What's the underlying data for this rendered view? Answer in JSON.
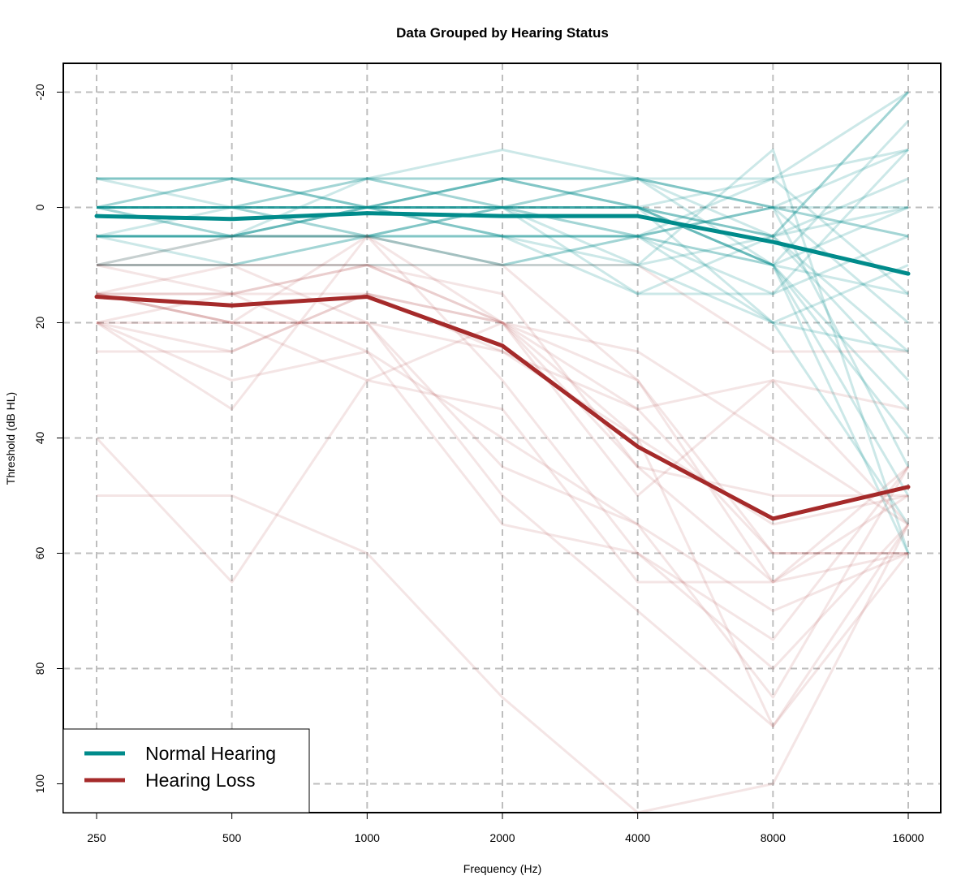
{
  "chart_data": {
    "type": "line",
    "title": "Data Grouped by Hearing Status",
    "xlabel": "Frequency (Hz)",
    "ylabel": "Threshold (dB HL)",
    "categories": [
      "250",
      "500",
      "1000",
      "2000",
      "4000",
      "8000",
      "16000"
    ],
    "ylim": [
      105,
      -25
    ],
    "y_ticks": [
      100,
      80,
      60,
      40,
      20,
      0,
      -20
    ],
    "y_axis_inverted": true,
    "grid": true,
    "legend_position": "bottom-left",
    "colors": {
      "normal_hearing": "#008b8b",
      "hearing_loss": "#a52a2a",
      "grid": "#bebebe"
    },
    "series": [
      {
        "name": "Normal Hearing",
        "group": "normal",
        "values": [
          1.5,
          2,
          1,
          1.5,
          1.5,
          6,
          11.5
        ]
      },
      {
        "name": "Hearing Loss",
        "group": "loss",
        "values": [
          15.5,
          17,
          15.5,
          24,
          41.5,
          54,
          48.5
        ]
      }
    ],
    "individual_series": [
      {
        "group": "normal",
        "values": [
          -5,
          -5,
          -5,
          -5,
          -5,
          5,
          -20
        ]
      },
      {
        "group": "normal",
        "values": [
          -5,
          -5,
          -5,
          -10,
          -5,
          -5,
          -10
        ]
      },
      {
        "group": "normal",
        "values": [
          0,
          -5,
          0,
          -5,
          -5,
          0,
          0
        ]
      },
      {
        "group": "normal",
        "values": [
          0,
          0,
          -5,
          0,
          -5,
          0,
          5
        ]
      },
      {
        "group": "normal",
        "values": [
          0,
          0,
          0,
          -5,
          0,
          5,
          25
        ]
      },
      {
        "group": "normal",
        "values": [
          0,
          0,
          0,
          0,
          0,
          10,
          40
        ]
      },
      {
        "group": "normal",
        "values": [
          0,
          5,
          0,
          0,
          0,
          10,
          60
        ]
      },
      {
        "group": "normal",
        "values": [
          5,
          0,
          0,
          0,
          0,
          5,
          30
        ]
      },
      {
        "group": "normal",
        "values": [
          5,
          5,
          5,
          5,
          5,
          10,
          15
        ]
      },
      {
        "group": "normal",
        "values": [
          5,
          5,
          0,
          5,
          5,
          10,
          35
        ]
      },
      {
        "group": "normal",
        "values": [
          0,
          -5,
          0,
          5,
          5,
          0,
          -10
        ]
      },
      {
        "group": "normal",
        "values": [
          -5,
          0,
          0,
          0,
          0,
          20,
          55
        ]
      },
      {
        "group": "normal",
        "values": [
          10,
          10,
          5,
          0,
          -5,
          10,
          0
        ]
      },
      {
        "group": "normal",
        "values": [
          10,
          5,
          -5,
          0,
          5,
          15,
          5
        ]
      },
      {
        "group": "normal",
        "values": [
          0,
          0,
          5,
          10,
          5,
          -5,
          -20
        ]
      },
      {
        "group": "normal",
        "values": [
          5,
          5,
          5,
          5,
          5,
          0,
          5
        ]
      },
      {
        "group": "normal",
        "values": [
          0,
          0,
          5,
          5,
          10,
          20,
          25
        ]
      },
      {
        "group": "normal",
        "values": [
          5,
          10,
          5,
          0,
          5,
          20,
          10
        ]
      },
      {
        "group": "normal",
        "values": [
          0,
          0,
          0,
          0,
          10,
          -10,
          60
        ]
      },
      {
        "group": "normal",
        "values": [
          10,
          10,
          10,
          10,
          10,
          5,
          0
        ]
      },
      {
        "group": "normal",
        "values": [
          5,
          5,
          0,
          5,
          15,
          5,
          -5
        ]
      },
      {
        "group": "normal",
        "values": [
          0,
          0,
          -5,
          -5,
          0,
          10,
          50
        ]
      },
      {
        "group": "normal",
        "values": [
          0,
          0,
          0,
          -5,
          -5,
          0,
          20
        ]
      },
      {
        "group": "normal",
        "values": [
          5,
          5,
          0,
          0,
          15,
          15,
          -10
        ]
      },
      {
        "group": "normal",
        "values": [
          0,
          5,
          5,
          0,
          0,
          10,
          -15
        ]
      },
      {
        "group": "normal",
        "values": [
          0,
          0,
          0,
          0,
          0,
          -5,
          15
        ]
      },
      {
        "group": "normal",
        "values": [
          -5,
          -5,
          0,
          -5,
          0,
          5,
          -20
        ]
      },
      {
        "group": "normal",
        "values": [
          5,
          5,
          5,
          10,
          5,
          0,
          45
        ]
      },
      {
        "group": "loss",
        "values": [
          10,
          10,
          10,
          10,
          10,
          25,
          25
        ]
      },
      {
        "group": "loss",
        "values": [
          15,
          20,
          20,
          25,
          35,
          60,
          60
        ]
      },
      {
        "group": "loss",
        "values": [
          20,
          25,
          15,
          20,
          30,
          65,
          45
        ]
      },
      {
        "group": "loss",
        "values": [
          15,
          15,
          10,
          15,
          45,
          65,
          60
        ]
      },
      {
        "group": "loss",
        "values": [
          25,
          25,
          15,
          20,
          50,
          30,
          55
        ]
      },
      {
        "group": "loss",
        "values": [
          20,
          30,
          25,
          40,
          55,
          70,
          60
        ]
      },
      {
        "group": "loss",
        "values": [
          20,
          35,
          5,
          20,
          40,
          90,
          55
        ]
      },
      {
        "group": "loss",
        "values": [
          15,
          20,
          30,
          35,
          65,
          65,
          50
        ]
      },
      {
        "group": "loss",
        "values": [
          10,
          5,
          5,
          30,
          60,
          75,
          45
        ]
      },
      {
        "group": "loss",
        "values": [
          20,
          20,
          20,
          50,
          70,
          90,
          60
        ]
      },
      {
        "group": "loss",
        "values": [
          50,
          50,
          60,
          85,
          105,
          100,
          55
        ]
      },
      {
        "group": "loss",
        "values": [
          40,
          65,
          30,
          20,
          25,
          40,
          55
        ]
      },
      {
        "group": "loss",
        "values": [
          15,
          15,
          15,
          25,
          40,
          55,
          50
        ]
      },
      {
        "group": "loss",
        "values": [
          15,
          10,
          20,
          45,
          55,
          85,
          45
        ]
      },
      {
        "group": "loss",
        "values": [
          10,
          15,
          10,
          20,
          35,
          30,
          35
        ]
      },
      {
        "group": "loss",
        "values": [
          15,
          20,
          5,
          10,
          30,
          60,
          60
        ]
      },
      {
        "group": "loss",
        "values": [
          20,
          15,
          25,
          55,
          60,
          80,
          55
        ]
      },
      {
        "group": "loss",
        "values": [
          10,
          10,
          10,
          20,
          45,
          50,
          50
        ]
      }
    ]
  }
}
